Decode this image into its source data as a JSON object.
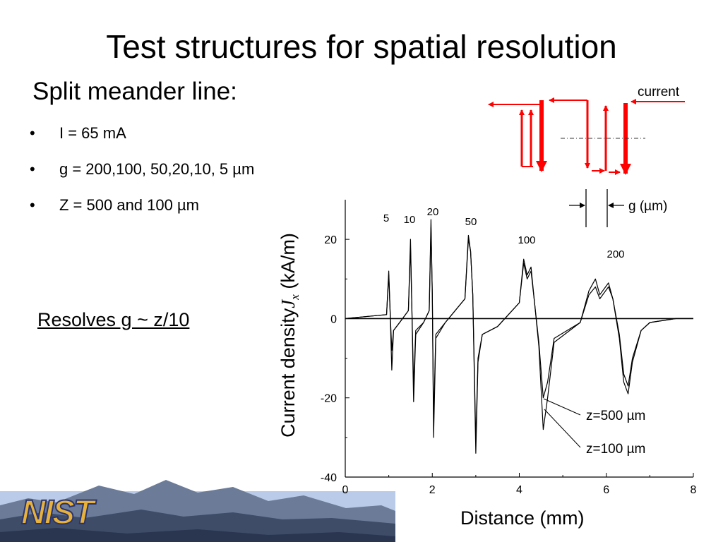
{
  "slide": {
    "title": "Test structures for spatial resolution",
    "subheading": "Split meander line:",
    "bullets": [
      "I = 65 mA",
      "g = 200,100, 50,20,10, 5 µm",
      "Z = 500 and 100 µm"
    ],
    "conclusion": "Resolves g ~ z/10"
  },
  "schematic": {
    "current_label": "current",
    "gap_label": "g (µm)",
    "arrow_color": "#ff0000"
  },
  "logo": {
    "text": "NIST",
    "colors": {
      "letters": "#e8b23a",
      "outline": "#2a3470",
      "sky": "#9fb6dd",
      "mountain": "#4a5a78"
    }
  },
  "chart_data": {
    "type": "line",
    "xlabel": "Distance (mm)",
    "ylabel_prefix": "Current density",
    "ylabel_var": "J",
    "ylabel_sub": "x",
    "ylabel_unit": "(kA/m)",
    "xlim": [
      0,
      8
    ],
    "ylim": [
      -40,
      30
    ],
    "xticks": [
      0,
      2,
      4,
      6,
      8
    ],
    "yticks": [
      -40,
      -20,
      0,
      20
    ],
    "grid": false,
    "gap_labels": [
      "5",
      "10",
      "20",
      "50",
      "100",
      "200"
    ],
    "series": [
      {
        "name": "z=500 µm",
        "color": "#000000",
        "x": [
          0,
          0.95,
          1.0,
          1.03,
          1.07,
          1.11,
          1.25,
          1.45,
          1.5,
          1.53,
          1.57,
          1.62,
          1.8,
          1.93,
          1.97,
          2.0,
          2.03,
          2.08,
          2.3,
          2.75,
          2.83,
          2.88,
          2.93,
          3.0,
          3.05,
          3.15,
          3.5,
          4.0,
          4.1,
          4.18,
          4.27,
          4.35,
          4.45,
          4.55,
          4.65,
          4.8,
          5.4,
          5.6,
          5.75,
          5.85,
          6.05,
          6.15,
          6.3,
          6.4,
          6.5,
          6.6,
          6.8,
          7.0,
          7.6,
          8.0
        ],
        "y": [
          0,
          1,
          11,
          2,
          -8,
          -3,
          -1,
          2,
          18,
          3,
          -17,
          -3,
          -1,
          2,
          23,
          6,
          -26,
          -4,
          -1,
          5,
          20,
          17,
          6,
          -31,
          -10,
          -4,
          -2,
          4,
          14,
          10,
          12,
          4,
          -6,
          -20,
          -16,
          -5,
          -1,
          6,
          8,
          5,
          8,
          5,
          -4,
          -14,
          -17,
          -10,
          -3,
          -1,
          0,
          0
        ]
      },
      {
        "name": "z=100 µm",
        "color": "#000000",
        "x": [
          0,
          0.95,
          1.0,
          1.03,
          1.07,
          1.11,
          1.25,
          1.45,
          1.5,
          1.53,
          1.57,
          1.62,
          1.8,
          1.93,
          1.97,
          2.0,
          2.03,
          2.08,
          2.3,
          2.75,
          2.83,
          2.88,
          2.93,
          3.0,
          3.05,
          3.15,
          3.5,
          4.0,
          4.1,
          4.18,
          4.27,
          4.35,
          4.45,
          4.55,
          4.65,
          4.8,
          5.4,
          5.6,
          5.75,
          5.85,
          6.05,
          6.15,
          6.3,
          6.4,
          6.5,
          6.6,
          6.8,
          7.0,
          7.6,
          8.0
        ],
        "y": [
          0,
          1,
          12,
          2,
          -13,
          -3,
          -1,
          2,
          20,
          3,
          -21,
          -4,
          -1,
          2,
          25,
          6,
          -30,
          -5,
          -1,
          5,
          21,
          17,
          6,
          -34,
          -11,
          -4,
          -2,
          4,
          15,
          11,
          13,
          4,
          -7,
          -28,
          -20,
          -6,
          -1,
          7,
          10,
          6,
          9,
          5,
          -5,
          -16,
          -19,
          -11,
          -3,
          -1,
          0,
          0
        ]
      }
    ]
  }
}
